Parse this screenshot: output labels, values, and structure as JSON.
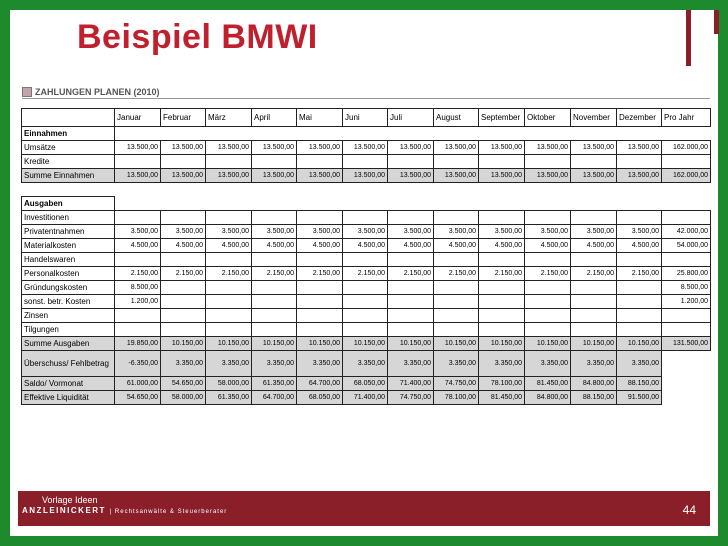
{
  "title": "Beispiel BMWI",
  "section_title": "ZAHLUNGEN PLANEN (2010)",
  "months": [
    "Januar",
    "Februar",
    "März",
    "April",
    "Mai",
    "Juni",
    "Juli",
    "August",
    "September",
    "Oktober",
    "November",
    "Dezember",
    "Pro Jahr"
  ],
  "rows": [
    {
      "label": "Einnahmen",
      "type": "section",
      "values": []
    },
    {
      "label": "Umsätze",
      "type": "normal",
      "values": [
        "13.500,00",
        "13.500,00",
        "13.500,00",
        "13.500,00",
        "13.500,00",
        "13.500,00",
        "13.500,00",
        "13.500,00",
        "13.500,00",
        "13.500,00",
        "13.500,00",
        "13.500,00",
        "162.000,00"
      ]
    },
    {
      "label": "Kredite",
      "type": "normal",
      "values": []
    },
    {
      "label": "Summe Einnahmen",
      "type": "sum",
      "values": [
        "13.500,00",
        "13.500,00",
        "13.500,00",
        "13.500,00",
        "13.500,00",
        "13.500,00",
        "13.500,00",
        "13.500,00",
        "13.500,00",
        "13.500,00",
        "13.500,00",
        "13.500,00",
        "162.000,00"
      ]
    },
    {
      "label": "",
      "type": "blank",
      "values": []
    },
    {
      "label": "Ausgaben",
      "type": "section",
      "values": []
    },
    {
      "label": "Investitionen",
      "type": "normal",
      "values": []
    },
    {
      "label": "Privatentnahmen",
      "type": "normal",
      "values": [
        "3.500,00",
        "3.500,00",
        "3.500,00",
        "3.500,00",
        "3.500,00",
        "3.500,00",
        "3.500,00",
        "3.500,00",
        "3.500,00",
        "3.500,00",
        "3.500,00",
        "3.500,00",
        "42.000,00"
      ]
    },
    {
      "label": "Materialkosten",
      "type": "normal",
      "values": [
        "4.500,00",
        "4.500,00",
        "4.500,00",
        "4.500,00",
        "4.500,00",
        "4.500,00",
        "4.500,00",
        "4.500,00",
        "4.500,00",
        "4.500,00",
        "4.500,00",
        "4.500,00",
        "54.000,00"
      ]
    },
    {
      "label": "Handelswaren",
      "type": "normal",
      "values": []
    },
    {
      "label": "Personalkosten",
      "type": "normal",
      "values": [
        "2.150,00",
        "2.150,00",
        "2.150,00",
        "2.150,00",
        "2.150,00",
        "2.150,00",
        "2.150,00",
        "2.150,00",
        "2.150,00",
        "2.150,00",
        "2.150,00",
        "2.150,00",
        "25.800,00"
      ]
    },
    {
      "label": "Gründungskosten",
      "type": "normal",
      "values": [
        "8.500,00",
        "",
        "",
        "",
        "",
        "",
        "",
        "",
        "",
        "",
        "",
        "",
        "8.500,00"
      ]
    },
    {
      "label": "sonst. betr. Kosten",
      "type": "normal",
      "values": [
        "1.200,00",
        "",
        "",
        "",
        "",
        "",
        "",
        "",
        "",
        "",
        "",
        "",
        "1.200,00"
      ]
    },
    {
      "label": "Zinsen",
      "type": "normal",
      "values": []
    },
    {
      "label": "Tilgungen",
      "type": "normal",
      "values": []
    },
    {
      "label": "Summe Ausgaben",
      "type": "sum",
      "values": [
        "19.850,00",
        "10.150,00",
        "10.150,00",
        "10.150,00",
        "10.150,00",
        "10.150,00",
        "10.150,00",
        "10.150,00",
        "10.150,00",
        "10.150,00",
        "10.150,00",
        "10.150,00",
        "131.500,00"
      ]
    },
    {
      "label": "Überschuss/ Fehlbetrag",
      "type": "sum-tall",
      "values": [
        "-6.350,00",
        "3.350,00",
        "3.350,00",
        "3.350,00",
        "3.350,00",
        "3.350,00",
        "3.350,00",
        "3.350,00",
        "3.350,00",
        "3.350,00",
        "3.350,00",
        "3.350,00"
      ]
    },
    {
      "label": "Saldo/ Vormonat",
      "type": "sum",
      "values": [
        "61.000,00",
        "54.650,00",
        "58.000,00",
        "61.350,00",
        "64.700,00",
        "68.050,00",
        "71.400,00",
        "74.750,00",
        "78.100,00",
        "81.450,00",
        "84.800,00",
        "88.150,00"
      ]
    },
    {
      "label": "Effektive Liquidität",
      "type": "sum",
      "values": [
        "54.650,00",
        "58.000,00",
        "61.350,00",
        "64.700,00",
        "68.050,00",
        "71.400,00",
        "74.750,00",
        "78.100,00",
        "81.450,00",
        "84.800,00",
        "88.150,00",
        "91.500,00"
      ]
    }
  ],
  "footer": {
    "vorlage": "Vorlage Ideen",
    "brand": "ANZLEINICKERT",
    "brand_sub": "| Rechtsanwälte & Steuerberater",
    "page_number": "44"
  },
  "colors": {
    "frame": "#1e8a2e",
    "title": "#c0202e",
    "footer": "#8a1f2a",
    "sum_row": "#d6d6d6"
  }
}
